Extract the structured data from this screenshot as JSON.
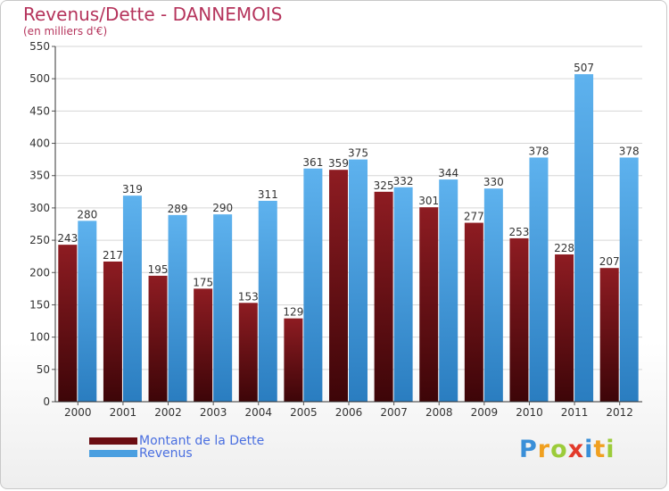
{
  "header": {
    "title": "Revenus/Dette - DANNEMOIS",
    "subtitle": "(en milliers d'€)"
  },
  "colors": {
    "title": "#b5345c",
    "debt": "#8b1a1f",
    "debt_dark": "#3d0508",
    "revenue": "#5aaeea",
    "revenue_dark": "#2a7dc0",
    "legend_text": "#4a6fe0"
  },
  "legend": {
    "items": [
      {
        "label": "Montant de la Dette",
        "color": "#6b0d12"
      },
      {
        "label": "Revenus",
        "color": "#4a9fe0"
      }
    ]
  },
  "logo": {
    "text": "Proxiti",
    "letters": [
      {
        "ch": "P",
        "color": "#3a8fd8"
      },
      {
        "ch": "r",
        "color": "#f0a020"
      },
      {
        "ch": "o",
        "color": "#9ccc3a"
      },
      {
        "ch": "x",
        "color": "#e23a2a"
      },
      {
        "ch": "i",
        "color": "#3a8fd8"
      },
      {
        "ch": "t",
        "color": "#f0a020"
      },
      {
        "ch": "i",
        "color": "#9ccc3a"
      }
    ]
  },
  "chart_data": {
    "type": "bar",
    "title": "Revenus/Dette - DANNEMOIS",
    "subtitle": "(en milliers d'€)",
    "categories": [
      "2000",
      "2001",
      "2002",
      "2003",
      "2004",
      "2005",
      "2006",
      "2007",
      "2008",
      "2009",
      "2010",
      "2011",
      "2012"
    ],
    "series": [
      {
        "name": "Montant de la Dette",
        "values": [
          243,
          217,
          195,
          175,
          153,
          129,
          359,
          325,
          301,
          277,
          253,
          228,
          207
        ]
      },
      {
        "name": "Revenus",
        "values": [
          280,
          319,
          289,
          290,
          311,
          361,
          375,
          332,
          344,
          330,
          378,
          507,
          378
        ]
      }
    ],
    "ylim": [
      0,
      550
    ],
    "yticks": [
      "0",
      "50",
      "100",
      "150",
      "200",
      "250",
      "300",
      "350",
      "400",
      "450",
      "500",
      "550"
    ],
    "grid": true,
    "legend": "bottom-left"
  }
}
